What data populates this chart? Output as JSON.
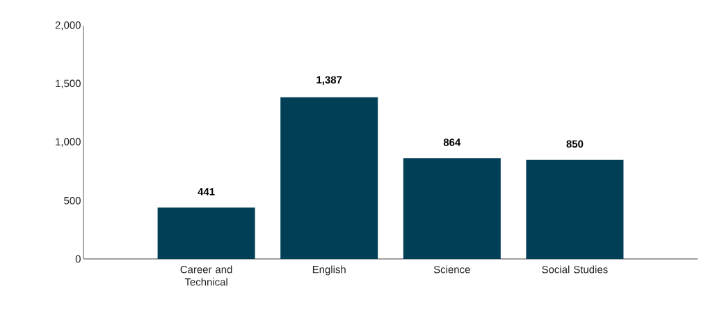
{
  "chart_data": {
    "type": "bar",
    "categories": [
      "Career and Technical",
      "English",
      "Science",
      "Social Studies"
    ],
    "values": [
      441,
      1387,
      864,
      850
    ],
    "value_labels": [
      "441",
      "1,387",
      "864",
      "850"
    ],
    "color": "#013f56",
    "ylim": [
      0,
      2000
    ],
    "yticks": [
      0,
      {
        "value": 500,
        "label": "500"
      },
      {
        "value": 1000,
        "label": "1,000"
      },
      {
        "value": 1500,
        "label": "1,500"
      },
      {
        "value": 2000,
        "label": "2,000"
      }
    ]
  }
}
